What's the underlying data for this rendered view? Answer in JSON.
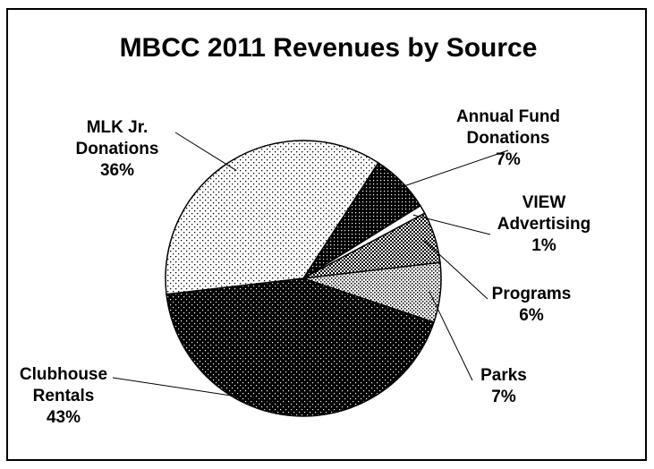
{
  "chart_data": {
    "type": "pie",
    "title": "MBCC 2011 Revenues by Source",
    "slices": [
      {
        "label": [
          "Annual Fund",
          "Donations",
          "7%"
        ],
        "value": 7,
        "pattern": "dense-dots"
      },
      {
        "label": [
          "VIEW",
          "Advertising",
          "1%"
        ],
        "value": 1,
        "pattern": "white"
      },
      {
        "label": [
          "Programs",
          "6%"
        ],
        "value": 6,
        "pattern": "checker"
      },
      {
        "label": [
          "Parks",
          "7%"
        ],
        "value": 7,
        "pattern": "light-checker"
      },
      {
        "label": [
          "Clubhouse",
          "Rentals",
          "43%"
        ],
        "value": 43,
        "pattern": "black-dots"
      },
      {
        "label": [
          "MLK Jr.",
          "Donations",
          "36%"
        ],
        "value": 36,
        "pattern": "sparse-dots"
      }
    ],
    "colors": {
      "background": "#ffffff",
      "ink": "#000000"
    }
  }
}
